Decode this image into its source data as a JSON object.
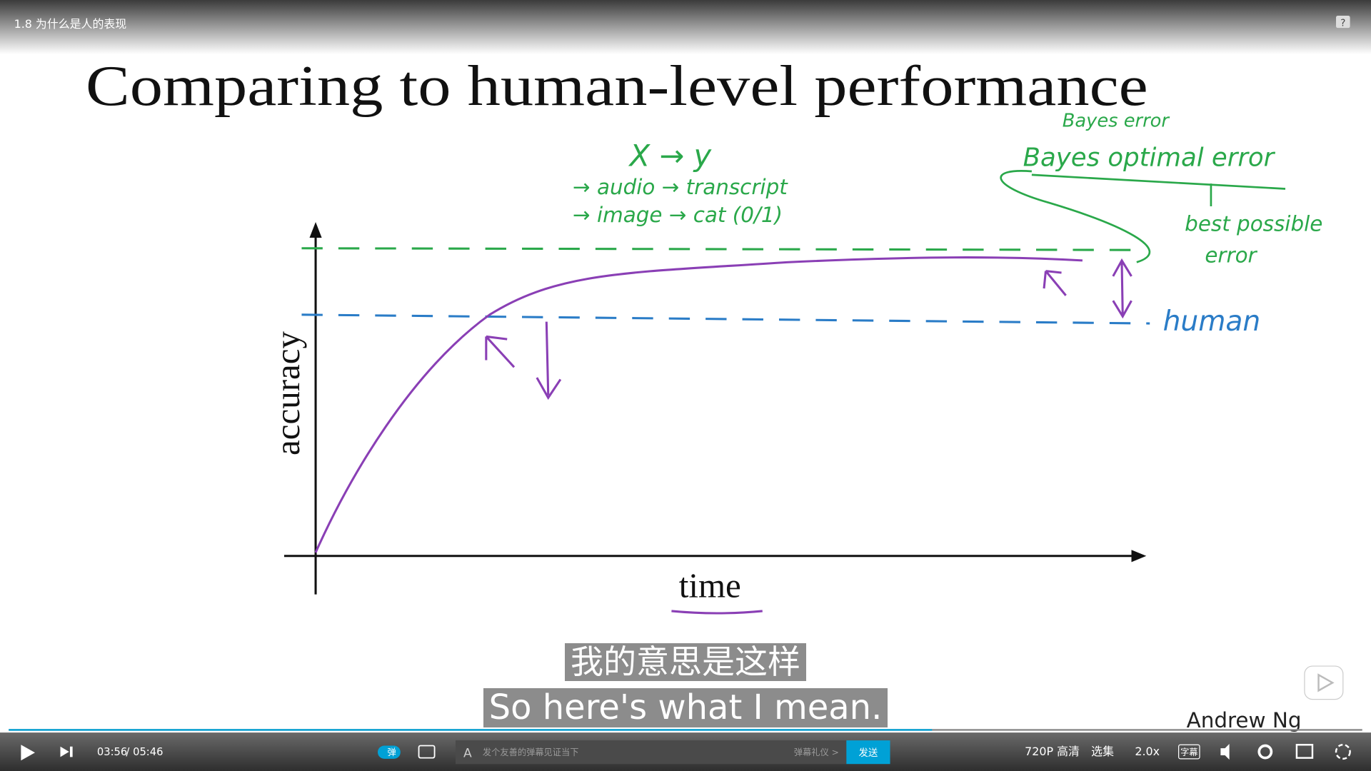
{
  "player": {
    "title": "1.8 为什么是人的表现",
    "current_time": "03:56",
    "separator": "/",
    "duration": "05:46",
    "danmaku_toggle": "弹",
    "danmaku_placeholder": "发个友善的弹幕见证当下",
    "danmaku_etiquette": "弹幕礼仪 >",
    "send": "发送",
    "quality": "720P 高清",
    "episodes": "选集",
    "speed": "2.0x",
    "subtitle_button": "字幕"
  },
  "slide": {
    "title": "Comparing to human-level performance",
    "author": "Andrew Ng",
    "y_axis_label": "accuracy",
    "x_axis_label": "time",
    "annotations": {
      "mapping": "X → y",
      "audio": "→ audio → transcript",
      "image": "→ image → cat (0/1)",
      "bayes_error": "Bayes error",
      "bayes_optimal": "Bayes optimal error",
      "best_possible": "best possible",
      "error": "error",
      "human": "human"
    }
  },
  "subtitles": {
    "zh": "我的意思是这样",
    "en": "So here's what I mean."
  }
}
